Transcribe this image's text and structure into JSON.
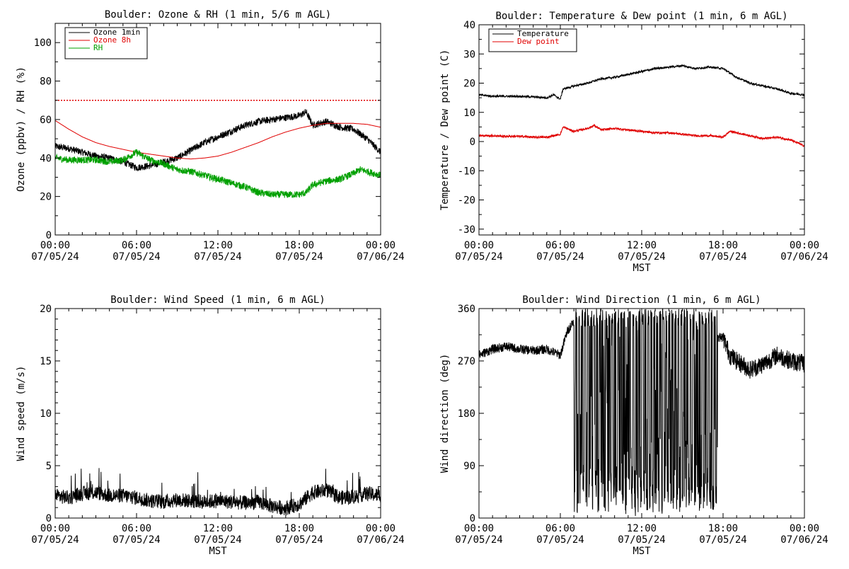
{
  "colors": {
    "black": "#000000",
    "red": "#e00000",
    "green": "#00a000"
  },
  "chart_data": [
    {
      "type": "line",
      "title": "Boulder: Ozone & RH (1 min, 5/6 m AGL)",
      "xlabel": "",
      "ylabel": "Ozone (ppbv) / RH (%)",
      "xlim": [
        0,
        24
      ],
      "ylim": [
        0,
        110
      ],
      "yticks": [
        0,
        20,
        40,
        60,
        80,
        100
      ],
      "xtick_labels": [
        {
          "time": "00:00",
          "date": "07/05/24"
        },
        {
          "time": "06:00",
          "date": "07/05/24"
        },
        {
          "time": "12:00",
          "date": "07/05/24"
        },
        {
          "time": "18:00",
          "date": "07/05/24"
        },
        {
          "time": "00:00",
          "date": "07/06/24"
        }
      ],
      "reference_line": {
        "y": 70,
        "style": "dotted",
        "color": "#e00000"
      },
      "legend_position": "top-left",
      "series": [
        {
          "name": "Ozone 1min",
          "color": "#000000",
          "x": [
            0,
            1,
            2,
            3,
            4,
            5,
            6,
            7,
            8,
            9,
            10,
            11,
            12,
            13,
            14,
            15,
            16,
            17,
            18,
            18.5,
            19,
            20,
            21,
            22,
            23,
            24
          ],
          "y": [
            46,
            45,
            43,
            41,
            40,
            38,
            35,
            36,
            38,
            40,
            44,
            48,
            51,
            54,
            57,
            59,
            60,
            61,
            62,
            64,
            57,
            59,
            56,
            55,
            50,
            43
          ]
        },
        {
          "name": "Ozone 8h",
          "color": "#e00000",
          "x": [
            0,
            1,
            2,
            3,
            4,
            5,
            6,
            7,
            8,
            9,
            10,
            11,
            12,
            13,
            14,
            15,
            16,
            17,
            18,
            19,
            20,
            21,
            22,
            23,
            24
          ],
          "y": [
            59.5,
            55,
            51,
            48,
            46,
            44.5,
            43,
            42,
            41,
            40,
            39.5,
            40,
            41,
            43,
            45.5,
            48,
            51,
            53.5,
            55.5,
            57,
            58,
            58,
            58,
            57.5,
            56
          ]
        },
        {
          "name": "RH",
          "color": "#00a000",
          "x": [
            0,
            1,
            2,
            3,
            4,
            5,
            6,
            6.5,
            7,
            8,
            9,
            10,
            11,
            12,
            13,
            14,
            15,
            16,
            17,
            18,
            18.5,
            19,
            20,
            21,
            22,
            22.5,
            23,
            24
          ],
          "y": [
            40,
            39,
            39,
            39,
            38,
            39,
            43,
            41,
            39,
            37,
            34,
            33,
            31,
            29,
            27,
            25,
            22,
            21,
            21,
            21,
            22,
            26,
            28,
            29,
            32,
            34,
            33,
            31
          ]
        }
      ]
    },
    {
      "type": "line",
      "title": "Boulder: Temperature & Dew point (1 min, 6 m AGL)",
      "xlabel": "MST",
      "ylabel": "Temperature / Dew point (C)",
      "xlim": [
        0,
        24
      ],
      "ylim": [
        -32,
        40
      ],
      "yticks": [
        -30,
        -20,
        -10,
        0,
        10,
        20,
        30,
        40
      ],
      "xtick_labels": [
        {
          "time": "00:00",
          "date": "07/05/24"
        },
        {
          "time": "06:00",
          "date": "07/05/24"
        },
        {
          "time": "12:00",
          "date": "07/05/24"
        },
        {
          "time": "18:00",
          "date": "07/05/24"
        },
        {
          "time": "00:00",
          "date": "07/06/24"
        }
      ],
      "legend_position": "top-left",
      "series": [
        {
          "name": "Temperature",
          "color": "#000000",
          "x": [
            0,
            1,
            2,
            3,
            4,
            5,
            5.5,
            6,
            6.2,
            7,
            8,
            9,
            10,
            11,
            12,
            13,
            14,
            15,
            16,
            17,
            18,
            19,
            20,
            21,
            22,
            23,
            24
          ],
          "y": [
            16,
            15.5,
            15.5,
            15.5,
            15.3,
            15,
            16,
            14.5,
            18,
            19,
            20,
            21.5,
            22,
            23,
            24,
            25,
            25.5,
            26,
            25,
            25.5,
            25,
            22,
            20,
            19,
            18,
            16.5,
            16
          ]
        },
        {
          "name": "Dew point",
          "color": "#e00000",
          "x": [
            0,
            1,
            2,
            3,
            4,
            5,
            6,
            6.2,
            7,
            8,
            8.5,
            9,
            10,
            11,
            12,
            13,
            14,
            15,
            16,
            17,
            18,
            18.5,
            19,
            20,
            21,
            22,
            23,
            24
          ],
          "y": [
            2,
            2,
            1.8,
            1.8,
            1.5,
            1.5,
            2.5,
            5,
            3.5,
            4.5,
            5.5,
            4,
            4.5,
            4,
            3.5,
            3,
            3,
            2.5,
            2,
            2,
            1.5,
            3.5,
            3,
            2,
            1,
            1.5,
            0.5,
            -1.5
          ]
        }
      ]
    },
    {
      "type": "line",
      "title": "Boulder: Wind Speed (1 min, 6 m AGL)",
      "xlabel": "MST",
      "ylabel": "Wind speed (m/s)",
      "xlim": [
        0,
        24
      ],
      "ylim": [
        0,
        20
      ],
      "yticks": [
        0,
        5,
        10,
        15,
        20
      ],
      "xtick_labels": [
        {
          "time": "00:00",
          "date": "07/05/24"
        },
        {
          "time": "06:00",
          "date": "07/05/24"
        },
        {
          "time": "12:00",
          "date": "07/05/24"
        },
        {
          "time": "18:00",
          "date": "07/05/24"
        },
        {
          "time": "00:00",
          "date": "07/06/24"
        }
      ],
      "series": [
        {
          "name": "",
          "color": "#000000",
          "x": [
            0,
            1,
            2,
            3,
            4,
            5,
            6,
            7,
            8,
            9,
            10,
            11,
            12,
            13,
            14,
            15,
            16,
            17,
            18,
            19,
            20,
            21,
            22,
            23,
            24
          ],
          "y": [
            2,
            1.8,
            2.2,
            2.3,
            2.0,
            2.0,
            1.8,
            1.5,
            1.4,
            1.6,
            1.5,
            1.4,
            1.5,
            1.4,
            1.3,
            1.4,
            1.0,
            0.8,
            1.2,
            2.3,
            2.5,
            1.8,
            1.9,
            2.2,
            2.0
          ]
        }
      ]
    },
    {
      "type": "line",
      "title": "Boulder: Wind Direction (1 min, 6 m AGL)",
      "xlabel": "MST",
      "ylabel": "Wind direction (deg)",
      "xlim": [
        0,
        24
      ],
      "ylim": [
        0,
        360
      ],
      "yticks": [
        0,
        90,
        180,
        270,
        360
      ],
      "xtick_labels": [
        {
          "time": "00:00",
          "date": "07/05/24"
        },
        {
          "time": "06:00",
          "date": "07/05/24"
        },
        {
          "time": "12:00",
          "date": "07/05/24"
        },
        {
          "time": "18:00",
          "date": "07/05/24"
        },
        {
          "time": "00:00",
          "date": "07/06/24"
        }
      ],
      "series": [
        {
          "name": "",
          "color": "#000000",
          "x": [
            0,
            1,
            2,
            3,
            4,
            5,
            6,
            6.5,
            7,
            18,
            18.5,
            19,
            20,
            21,
            22,
            23,
            24
          ],
          "y": [
            280,
            290,
            295,
            290,
            288,
            290,
            280,
            320,
            340,
            310,
            280,
            270,
            255,
            265,
            280,
            270,
            265
          ]
        }
      ]
    }
  ]
}
